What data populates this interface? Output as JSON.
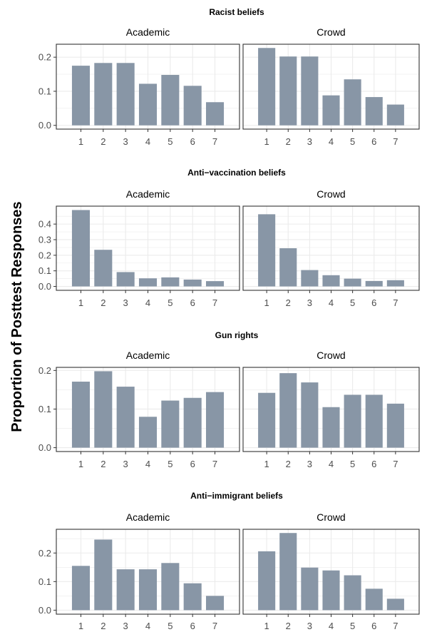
{
  "y_axis_label": "Proportion of Posttest Responses",
  "colors": {
    "bar": "#8896a6",
    "panel_border": "#333333",
    "grid": "#ebebeb",
    "text": "#000000",
    "tick_text": "#4d4d4d"
  },
  "chart_data": [
    {
      "type": "bar",
      "title": "Racist beliefs",
      "categories": [
        "1",
        "2",
        "3",
        "4",
        "5",
        "6",
        "7"
      ],
      "panels": [
        {
          "name": "Academic",
          "values": [
            0.175,
            0.183,
            0.183,
            0.122,
            0.148,
            0.116,
            0.068
          ]
        },
        {
          "name": "Crowd",
          "values": [
            0.227,
            0.202,
            0.202,
            0.088,
            0.135,
            0.083,
            0.061
          ]
        }
      ],
      "yticks": [
        "0.0",
        "0.1",
        "0.2"
      ],
      "ylim": [
        -0.011,
        0.238
      ],
      "grid": true
    },
    {
      "type": "bar",
      "title": "Anti−vaccination beliefs",
      "categories": [
        "1",
        "2",
        "3",
        "4",
        "5",
        "6",
        "7"
      ],
      "panels": [
        {
          "name": "Academic",
          "values": [
            0.49,
            0.235,
            0.092,
            0.052,
            0.058,
            0.044,
            0.034
          ]
        },
        {
          "name": "Crowd",
          "values": [
            0.463,
            0.245,
            0.105,
            0.072,
            0.05,
            0.035,
            0.04
          ]
        }
      ],
      "yticks": [
        "0.0",
        "0.1",
        "0.2",
        "0.3",
        "0.4"
      ],
      "ylim": [
        -0.025,
        0.515
      ],
      "grid": true
    },
    {
      "type": "bar",
      "title": "Gun rights",
      "categories": [
        "1",
        "2",
        "3",
        "4",
        "5",
        "6",
        "7"
      ],
      "panels": [
        {
          "name": "Academic",
          "values": [
            0.171,
            0.198,
            0.158,
            0.08,
            0.122,
            0.129,
            0.144
          ]
        },
        {
          "name": "Crowd",
          "values": [
            0.142,
            0.193,
            0.169,
            0.105,
            0.137,
            0.137,
            0.114
          ]
        }
      ],
      "yticks": [
        "0.0",
        "0.1",
        "0.2"
      ],
      "ylim": [
        -0.01,
        0.208
      ],
      "grid": true
    },
    {
      "type": "bar",
      "title": "Anti−immigrant beliefs",
      "categories": [
        "1",
        "2",
        "3",
        "4",
        "5",
        "6",
        "7"
      ],
      "panels": [
        {
          "name": "Academic",
          "values": [
            0.155,
            0.247,
            0.143,
            0.143,
            0.165,
            0.094,
            0.05
          ]
        },
        {
          "name": "Crowd",
          "values": [
            0.206,
            0.27,
            0.149,
            0.139,
            0.122,
            0.075,
            0.04
          ]
        }
      ],
      "yticks": [
        "0.0",
        "0.1",
        "0.2"
      ],
      "ylim": [
        -0.014,
        0.283
      ],
      "grid": true
    }
  ]
}
